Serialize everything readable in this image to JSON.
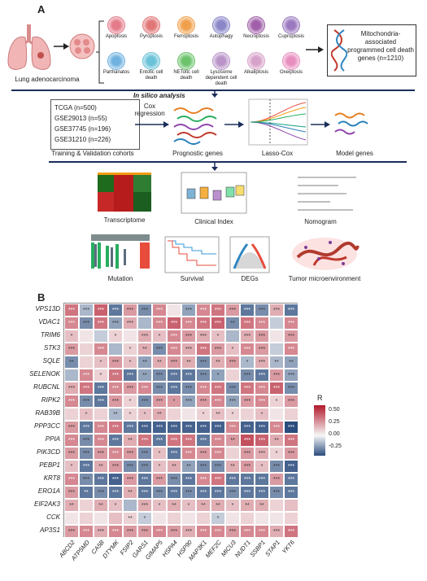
{
  "panel_a": {
    "letter": "A",
    "lung_label": "Lung adenocarcinoma",
    "death_types": [
      {
        "label": "Apoptosis",
        "color": "#e47b8a"
      },
      {
        "label": "Pyroptosis",
        "color": "#e17676"
      },
      {
        "label": "Ferroptosis",
        "color": "#f0a04b"
      },
      {
        "label": "Autophagy",
        "color": "#8a86c8"
      },
      {
        "label": "Necroptosis",
        "color": "#a05fa8"
      },
      {
        "label": "Cuproptosis",
        "color": "#9b79c0"
      },
      {
        "label": "Parthanatos",
        "color": "#6fb2e0"
      },
      {
        "label": "Entotic cell death",
        "color": "#6ac2d8"
      },
      {
        "label": "NETotic cell death",
        "color": "#6cc36c"
      },
      {
        "label": "Lysosome dependent cell death",
        "color": "#b993c8"
      },
      {
        "label": "Alkaliptosis",
        "color": "#d7a2c9"
      },
      {
        "label": "Oxeiptosis",
        "color": "#e88fbf"
      }
    ],
    "mito_box": "Mitochondria-associated programmed cell death genes (n=1210)",
    "in_silico": "In silico analysis",
    "cohorts": [
      "TCGA (n=500)",
      "GSE29013 (n=55)",
      "GSE37745 (n=196)",
      "GSE31210 (n=226)"
    ],
    "cox_label": "Cox regression",
    "step_captions": {
      "cohorts": "Training & Validation cohorts",
      "prognostic": "Prognostic genes",
      "lasso": "Lasso-Cox",
      "model": "Model genes"
    },
    "analyses": {
      "transcriptome": "Transcriptome",
      "clinical": "Clinical  Index",
      "nomogram": "Nomogram",
      "mutation": "Mutation",
      "survival": "Survival",
      "degs": "DEGs",
      "tme": "Tumor microenvironment"
    }
  },
  "panel_b": {
    "letter": "B",
    "rows": [
      "VPS13D",
      "VDAC1",
      "TRIM6",
      "STK3",
      "SQLE",
      "SELENOK",
      "RUBCNL",
      "RIPK2",
      "RAB39B",
      "PPP3CC",
      "PPIA",
      "PIK3CD",
      "PEBP1",
      "KRT8",
      "ERO1A",
      "EIF2AK3",
      "CCK",
      "AP3S1"
    ],
    "cols": [
      "ABCD2",
      "ATP5MD",
      "CA5B",
      "DTYMK",
      "FSIP2",
      "GARS1",
      "GIMAP5",
      "HSPA4",
      "HSP90",
      "MAP3K1",
      "MEF2C",
      "MICU3",
      "NUDT1",
      "SSBP1",
      "STAP1",
      "YKT6"
    ],
    "legend": {
      "title": "R",
      "ticks": [
        "0.50",
        "0.25",
        "0.00",
        "-0.25"
      ],
      "max": 0.6,
      "min": -0.4,
      "high_color": "#b2182b",
      "mid_color": "#f7f7f7",
      "low_color": "#2b4c7e"
    },
    "values": [
      [
        0.35,
        -0.15,
        0.4,
        -0.3,
        0.25,
        -0.25,
        0.3,
        0.05,
        -0.2,
        0.3,
        0.35,
        0.25,
        -0.3,
        -0.25,
        0.2,
        -0.3
      ],
      [
        0.3,
        -0.25,
        0.35,
        -0.2,
        0.2,
        -0.15,
        0.3,
        0.4,
        0.3,
        0.35,
        0.4,
        -0.25,
        0.35,
        0.3,
        -0.1,
        0.3
      ],
      [
        0.15,
        0.05,
        -0.1,
        0.1,
        0.05,
        0.2,
        0.15,
        0.3,
        0.25,
        0.2,
        0.15,
        -0.15,
        0.2,
        0.25,
        0.05,
        0.25
      ],
      [
        0.25,
        0.1,
        0.3,
        -0.15,
        0.1,
        0.2,
        -0.25,
        0.3,
        0.2,
        0.35,
        0.25,
        0.15,
        0.3,
        0.25,
        -0.1,
        0.3
      ],
      [
        -0.25,
        0.1,
        0.15,
        0.25,
        0.15,
        -0.2,
        0.2,
        0.25,
        0.2,
        -0.25,
        0.2,
        0.25,
        -0.15,
        0.2,
        -0.15,
        -0.2
      ],
      [
        -0.15,
        0.3,
        0.1,
        0.35,
        -0.3,
        -0.2,
        -0.25,
        -0.3,
        -0.3,
        -0.25,
        -0.2,
        0.1,
        -0.25,
        -0.3,
        0.25,
        -0.2
      ],
      [
        0.2,
        0.35,
        -0.3,
        0.3,
        0.25,
        0.3,
        -0.25,
        -0.3,
        -0.25,
        0.3,
        0.35,
        -0.25,
        0.35,
        0.3,
        0.4,
        -0.25
      ],
      [
        0.3,
        -0.25,
        -0.3,
        0.25,
        0.1,
        -0.25,
        0.25,
        0.25,
        -0.2,
        0.25,
        0.3,
        -0.2,
        0.25,
        0.3,
        0.1,
        0.25
      ],
      [
        0.1,
        0.15,
        0.1,
        -0.15,
        0.1,
        0.15,
        0.2,
        0.1,
        0.05,
        0.1,
        0.15,
        0.1,
        0.1,
        0.15,
        0.05,
        0.1
      ],
      [
        0.25,
        -0.3,
        0.3,
        0.35,
        -0.3,
        -0.35,
        -0.35,
        -0.35,
        -0.35,
        -0.35,
        -0.35,
        0.3,
        -0.35,
        -0.35,
        0.3,
        -0.4
      ],
      [
        0.3,
        -0.25,
        0.3,
        -0.3,
        0.2,
        0.35,
        -0.3,
        0.35,
        0.35,
        -0.3,
        0.3,
        0.25,
        0.45,
        0.4,
        0.2,
        0.35
      ],
      [
        0.25,
        -0.25,
        0.25,
        0.3,
        0.25,
        -0.25,
        0.15,
        -0.3,
        0.3,
        0.25,
        0.3,
        0.1,
        0.25,
        0.2,
        0.1,
        0.25
      ],
      [
        0.15,
        -0.3,
        0.2,
        0.25,
        -0.25,
        -0.25,
        0.15,
        0.2,
        -0.2,
        -0.25,
        -0.25,
        0.2,
        0.25,
        0.15,
        -0.25,
        -0.35
      ],
      [
        0.3,
        -0.25,
        -0.3,
        -0.35,
        0.25,
        -0.3,
        0.25,
        -0.25,
        -0.3,
        0.3,
        0.35,
        -0.3,
        -0.3,
        -0.3,
        0.25,
        -0.3
      ],
      [
        0.25,
        -0.3,
        -0.25,
        -0.3,
        0.2,
        -0.3,
        -0.25,
        -0.3,
        -0.25,
        -0.3,
        -0.3,
        -0.25,
        -0.3,
        -0.3,
        -0.25,
        -0.3
      ],
      [
        0.2,
        0.1,
        0.2,
        0.15,
        -0.15,
        0.2,
        0.15,
        0.2,
        0.15,
        0.2,
        0.2,
        0.15,
        0.2,
        0.2,
        0.1,
        0.15
      ],
      [
        0.05,
        0.1,
        0.05,
        0.15,
        0.1,
        -0.1,
        0.05,
        0.1,
        0.05,
        0.1,
        -0.1,
        0.05,
        0.1,
        0.05,
        0.05,
        0.1
      ],
      [
        0.25,
        0.3,
        0.2,
        0.3,
        0.25,
        0.25,
        0.3,
        0.25,
        0.2,
        0.3,
        0.3,
        0.25,
        0.3,
        0.3,
        0.2,
        0.35
      ]
    ],
    "stars": [
      [
        "***",
        "***",
        "***",
        "***",
        "***",
        "***",
        "***",
        "",
        "***",
        "***",
        "***",
        "***",
        "***",
        "***",
        "***",
        "***"
      ],
      [
        "***",
        "***",
        "***",
        "***",
        "***",
        "",
        "***",
        "***",
        "***",
        "***",
        "***",
        "**",
        "***",
        "***",
        "",
        "***"
      ],
      [
        "*",
        "",
        "",
        "*",
        "",
        "***",
        "*",
        "***",
        "***",
        "***",
        "*",
        "",
        "***",
        "***",
        "",
        "***"
      ],
      [
        "***",
        "",
        "***",
        "",
        "*",
        "**",
        "***",
        "***",
        "***",
        "***",
        "***",
        "*",
        "***",
        "***",
        "",
        "***"
      ],
      [
        "**",
        "",
        "*",
        "***",
        "*",
        "**",
        "**",
        "***",
        "**",
        "***",
        "**",
        "***",
        "*",
        "***",
        "**",
        "**"
      ],
      [
        "",
        "***",
        "*",
        "***",
        "***",
        "**",
        "***",
        "***",
        "***",
        "***",
        "*",
        "",
        "***",
        "***",
        "***",
        "***"
      ],
      [
        "***",
        "***",
        "***",
        "***",
        "***",
        "***",
        "***",
        "***",
        "***",
        "***",
        "***",
        "***",
        "***",
        "***",
        "***",
        "***"
      ],
      [
        "***",
        "***",
        "***",
        "***",
        "*",
        "***",
        "***",
        "*",
        "***",
        "***",
        "***",
        "***",
        "***",
        "***",
        "*",
        "***"
      ],
      [
        "",
        "*",
        "",
        "**",
        "*",
        "*",
        "**",
        "",
        "",
        "*",
        "**",
        "*",
        "",
        "*",
        "",
        ""
      ],
      [
        "***",
        "***",
        "***",
        "***",
        "***",
        "***",
        "***",
        "***",
        "***",
        "***",
        "***",
        "***",
        "***",
        "***",
        "***",
        "***"
      ],
      [
        "***",
        "***",
        "***",
        "***",
        "**",
        "***",
        "***",
        "***",
        "***",
        "***",
        "***",
        "**",
        "***",
        "***",
        "**",
        "***"
      ],
      [
        "***",
        "***",
        "***",
        "***",
        "***",
        "***",
        "*",
        "***",
        "***",
        "***",
        "***",
        "",
        "***",
        "***",
        "*",
        "***"
      ],
      [
        "*",
        "***",
        "**",
        "***",
        "***",
        "***",
        "*",
        "**",
        "**",
        "***",
        "***",
        "**",
        "***",
        "*",
        "***",
        "***"
      ],
      [
        "***",
        "***",
        "***",
        "***",
        "***",
        "***",
        "***",
        "***",
        "***",
        "***",
        "***",
        "***",
        "***",
        "***",
        "***",
        "***"
      ],
      [
        "***",
        "**",
        "***",
        "***",
        "**",
        "***",
        "***",
        "***",
        "***",
        "***",
        "***",
        "***",
        "***",
        "***",
        "***",
        "***"
      ],
      [
        "**",
        "",
        "**",
        "*",
        "",
        "***",
        "*",
        "**",
        "*",
        "**",
        "**",
        "*",
        "**",
        "**",
        "",
        ""
      ],
      [
        "",
        "",
        "",
        "",
        "**",
        "*",
        "",
        "",
        "",
        "",
        "*",
        "",
        "",
        "",
        "",
        ""
      ],
      [
        "***",
        "***",
        "***",
        "***",
        "***",
        "***",
        "***",
        "***",
        "***",
        "***",
        "***",
        "***",
        "***",
        "***",
        "***",
        "***"
      ]
    ]
  }
}
